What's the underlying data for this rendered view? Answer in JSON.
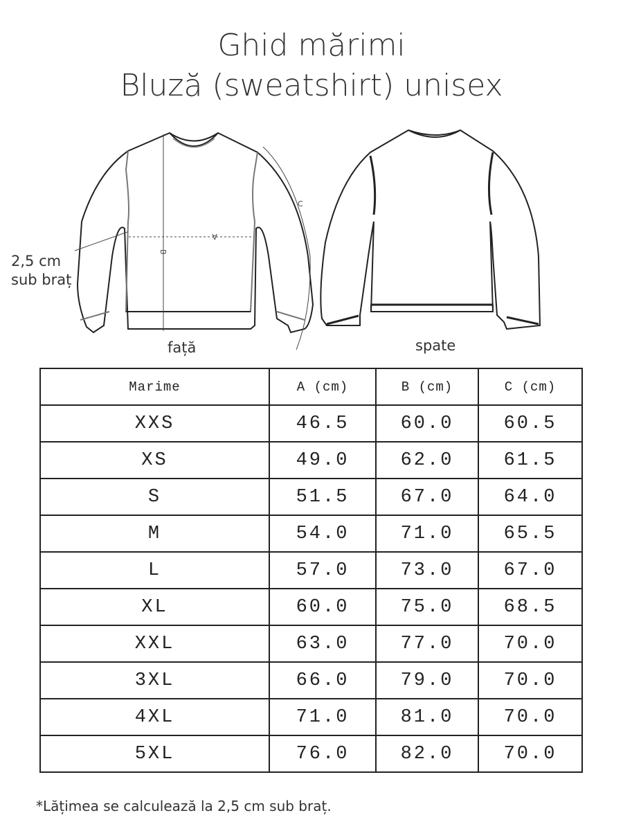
{
  "title": {
    "line1": "Ghid mărimi",
    "line2": "Bluză (sweatshirt) unisex"
  },
  "diagram": {
    "front_label": "față",
    "back_label": "spate",
    "underarm_note_line1": "2,5 cm",
    "underarm_note_line2": "sub braț",
    "measure_a": "A",
    "measure_b": "B",
    "measure_c": "C"
  },
  "table": {
    "headers": [
      "Marime",
      "A (cm)",
      "B (cm)",
      "C (cm)"
    ],
    "rows": [
      [
        "XXS",
        "46.5",
        "60.0",
        "60.5"
      ],
      [
        "XS",
        "49.0",
        "62.0",
        "61.5"
      ],
      [
        "S",
        "51.5",
        "67.0",
        "64.0"
      ],
      [
        "M",
        "54.0",
        "71.0",
        "65.5"
      ],
      [
        "L",
        "57.0",
        "73.0",
        "67.0"
      ],
      [
        "XL",
        "60.0",
        "75.0",
        "68.5"
      ],
      [
        "XXL",
        "63.0",
        "77.0",
        "70.0"
      ],
      [
        "3XL",
        "66.0",
        "79.0",
        "70.0"
      ],
      [
        "4XL",
        "71.0",
        "81.0",
        "70.0"
      ],
      [
        "5XL",
        "76.0",
        "82.0",
        "70.0"
      ]
    ]
  },
  "footnote": "*Lățimea se calculează la 2,5 cm sub braț."
}
